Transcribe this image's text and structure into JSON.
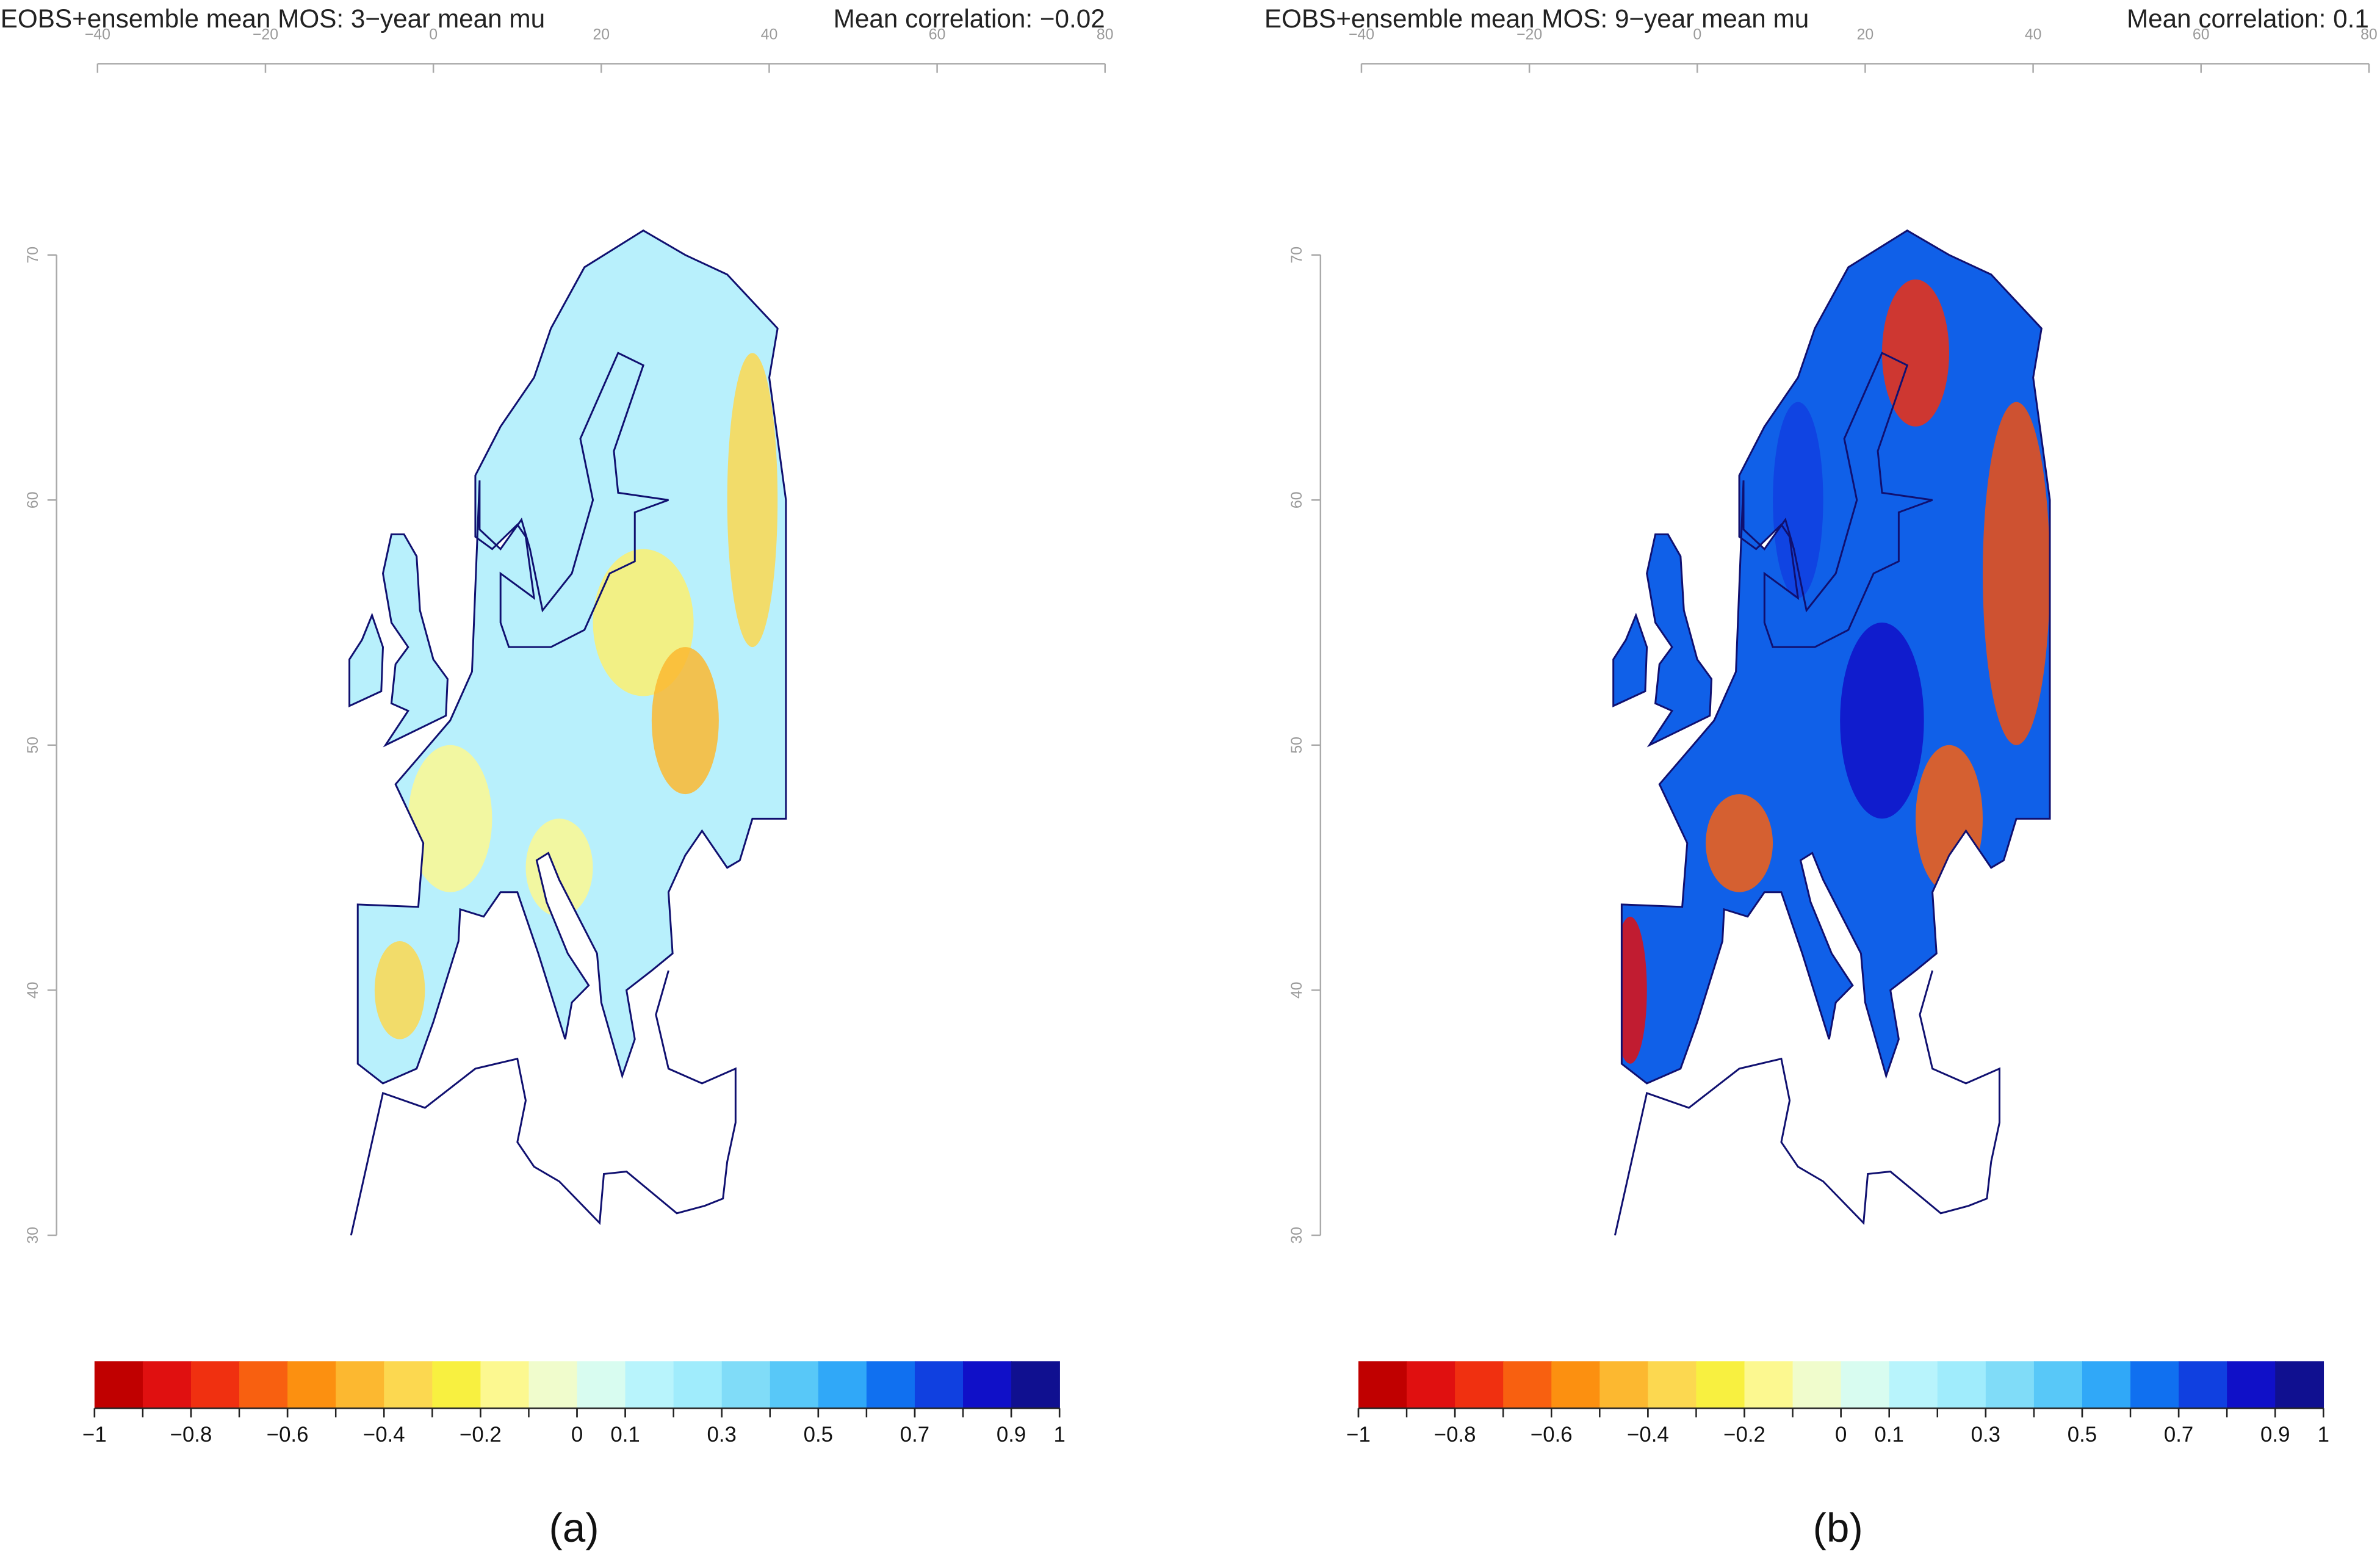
{
  "panels": [
    {
      "title": "EOBS+ensemble mean MOS: 3−year mean mu",
      "correlation": "Mean correlation: −0.02",
      "label": "(a)",
      "xlim": [
        -40,
        80
      ],
      "xticks": [
        {
          "value": -40,
          "label": "−40"
        },
        {
          "value": -20,
          "label": "−20"
        },
        0,
        20,
        40,
        60,
        80
      ],
      "ylim": [
        30,
        70
      ],
      "yticks": [
        30,
        40,
        50,
        60,
        70
      ],
      "colorbar": {
        "lim": [
          -1,
          1
        ],
        "colors": [
          "#c00000",
          "#e01010",
          "#f03010",
          "#f86010",
          "#fc9010",
          "#fcb830",
          "#fcd850",
          "#f8f040",
          "#fcf890",
          "#f0fccc",
          "#d8fcf0",
          "#b8f4fc",
          "#a0ecfc",
          "#80dcf8",
          "#58c8f8",
          "#30a8f8",
          "#1070f0",
          "#1040e0",
          "#1010c8",
          "#101090"
        ],
        "ticks": [
          {
            "value": -1,
            "label": "−1"
          },
          {
            "value": -0.8,
            "label": "−0.8"
          },
          {
            "value": -0.6,
            "label": "−0.6"
          },
          {
            "value": -0.4,
            "label": "−0.4"
          },
          {
            "value": -0.2,
            "label": "−0.2"
          },
          0,
          0.1,
          0.3,
          0.5,
          0.7,
          0.9,
          1
        ]
      }
    },
    {
      "title": "EOBS+ensemble mean MOS: 9−year mean mu",
      "correlation": "Mean correlation: 0.1",
      "label": "(b)",
      "xlim": [
        -40,
        80
      ],
      "xticks": [
        {
          "value": -40,
          "label": "−40"
        },
        {
          "value": -20,
          "label": "−20"
        },
        0,
        20,
        40,
        60,
        80
      ],
      "ylim": [
        30,
        70
      ],
      "yticks": [
        30,
        40,
        50,
        60,
        70
      ],
      "colorbar": {
        "lim": [
          -1,
          1
        ],
        "colors": [
          "#c00000",
          "#e01010",
          "#f03010",
          "#f86010",
          "#fc9010",
          "#fcb830",
          "#fcd850",
          "#f8f040",
          "#fcf890",
          "#f0fccc",
          "#d8fcf0",
          "#b8f4fc",
          "#a0ecfc",
          "#80dcf8",
          "#58c8f8",
          "#30a8f8",
          "#1070f0",
          "#1040e0",
          "#1010c8",
          "#101090"
        ],
        "ticks": [
          {
            "value": -1,
            "label": "−1"
          },
          {
            "value": -0.8,
            "label": "−0.8"
          },
          {
            "value": -0.6,
            "label": "−0.6"
          },
          {
            "value": -0.4,
            "label": "−0.4"
          },
          {
            "value": -0.2,
            "label": "−0.2"
          },
          0,
          0.1,
          0.3,
          0.5,
          0.7,
          0.9,
          1
        ]
      }
    }
  ]
}
